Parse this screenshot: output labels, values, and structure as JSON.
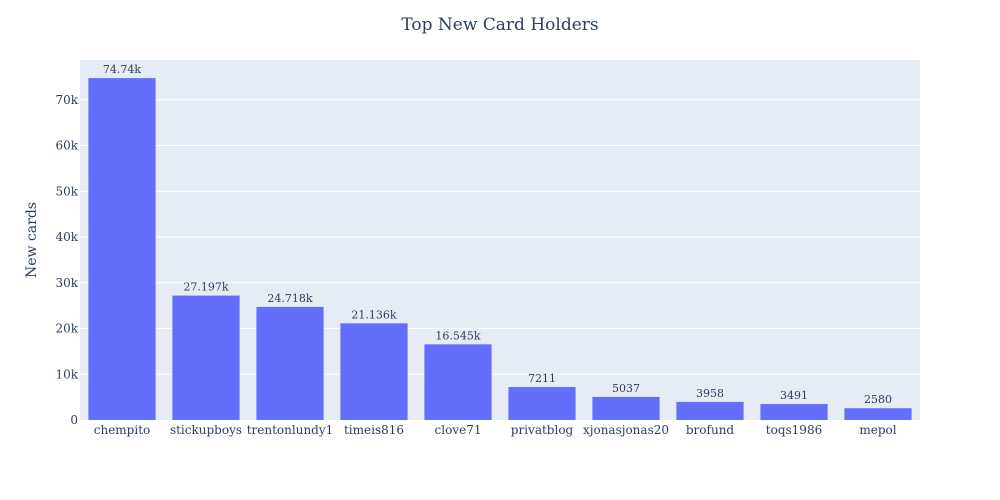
{
  "colors": {
    "bar": "#636efa",
    "plot_background": "#e5ecf6",
    "grid": "#ffffff",
    "text": "#2a3f5f"
  },
  "chart_data": {
    "type": "bar",
    "title": "Top New Card Holders",
    "xlabel": "",
    "ylabel": "New cards",
    "categories": [
      "chempito",
      "stickupboys",
      "trentonlundy1",
      "timeis816",
      "clove71",
      "privatblog",
      "xjonasjonas20",
      "brofund",
      "toqs1986",
      "mepol"
    ],
    "values": [
      74740,
      27197,
      24718,
      21136,
      16545,
      7211,
      5037,
      3958,
      3491,
      2580
    ],
    "data_labels": [
      "74.74k",
      "27.197k",
      "24.718k",
      "21.136k",
      "16.545k",
      "7211",
      "5037",
      "3958",
      "3491",
      "2580"
    ],
    "ylim": [
      0,
      78700
    ],
    "yticks": [
      0,
      10000,
      20000,
      30000,
      40000,
      50000,
      60000,
      70000
    ],
    "ytick_labels": [
      "0",
      "10k",
      "20k",
      "30k",
      "40k",
      "50k",
      "60k",
      "70k"
    ],
    "grid": true,
    "legend": false
  }
}
